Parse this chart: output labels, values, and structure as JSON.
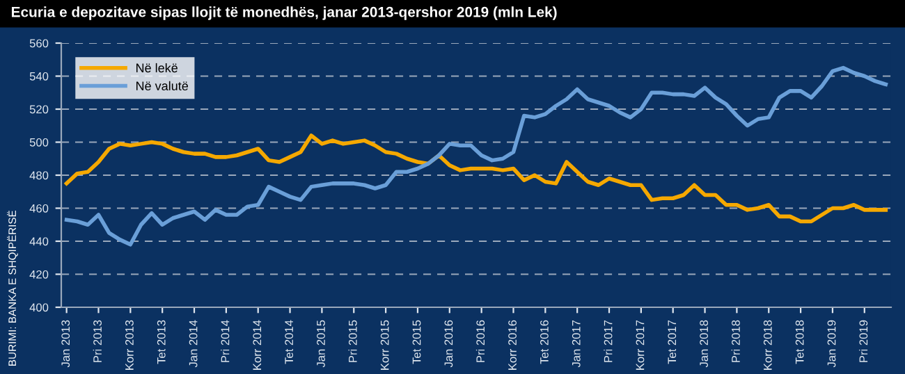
{
  "chart_data": {
    "type": "line",
    "title": "Ecuria e depozitave sipas llojit të monedhës, janar 2013-qershor 2019 (mln Lek)",
    "categories": [
      "Jan 2013",
      null,
      null,
      "Pri 2013",
      null,
      null,
      "Korr 2013",
      null,
      null,
      "Tet 2013",
      null,
      null,
      "Jan 2014",
      null,
      null,
      "Pri 2014",
      null,
      null,
      "Korr 2014",
      null,
      null,
      "Tet 2014",
      null,
      null,
      "Jan 2015",
      null,
      null,
      "Pri 2015",
      null,
      null,
      "Korr 2015",
      null,
      null,
      "Tet 2015",
      null,
      null,
      "Jan 2016",
      null,
      null,
      "Pri 2016",
      null,
      null,
      "Korr 2016",
      null,
      null,
      "Tet 2016",
      null,
      null,
      "Jan 2017",
      null,
      null,
      "Pri 2017",
      null,
      null,
      "Korr 2017",
      null,
      null,
      "Tet 2017",
      null,
      null,
      "Jan 2018",
      null,
      null,
      "Pri 2018",
      null,
      null,
      "Korr 2018",
      null,
      null,
      "Tet 2018",
      null,
      null,
      "Jan 2019",
      null,
      null,
      "Pri 2019",
      null,
      null
    ],
    "series": [
      {
        "name": "Në lekë",
        "color": "#f5a800",
        "values": [
          475,
          481,
          482,
          488,
          496,
          499,
          498,
          499,
          500,
          499,
          496,
          494,
          493,
          493,
          491,
          491,
          492,
          494,
          496,
          489,
          488,
          491,
          494,
          504,
          499,
          501,
          499,
          500,
          501,
          498,
          494,
          493,
          490,
          488,
          487,
          492,
          486,
          483,
          484,
          484,
          484,
          483,
          484,
          477,
          480,
          476,
          475,
          488,
          482,
          476,
          474,
          478,
          476,
          474,
          474,
          465,
          466,
          466,
          468,
          474,
          468,
          468,
          462,
          462,
          459,
          460,
          462,
          455,
          455,
          452,
          452,
          456,
          460,
          460,
          462,
          459,
          459,
          459
        ]
      },
      {
        "name": "Në valutë",
        "color": "#6a9fd8",
        "values": [
          453,
          452,
          450,
          456,
          445,
          441,
          438,
          450,
          457,
          450,
          454,
          456,
          458,
          453,
          459,
          456,
          456,
          461,
          462,
          473,
          470,
          467,
          465,
          473,
          474,
          475,
          475,
          475,
          474,
          472,
          474,
          482,
          482,
          484,
          487,
          492,
          499,
          498,
          498,
          492,
          489,
          490,
          494,
          516,
          515,
          517,
          522,
          526,
          532,
          526,
          524,
          522,
          518,
          515,
          520,
          530,
          530,
          529,
          529,
          528,
          533,
          527,
          523,
          516,
          510,
          514,
          515,
          527,
          531,
          531,
          527,
          534,
          543,
          545,
          542,
          540,
          537,
          535
        ]
      }
    ],
    "ylim": [
      400,
      560
    ],
    "yticks": [
      400,
      420,
      440,
      460,
      480,
      500,
      520,
      540,
      560
    ],
    "grid": "y",
    "legend": "top left",
    "line_style": "solid",
    "marker": "none",
    "annotations": [
      "BURIMI: BANKA E SHQIPËRISË"
    ]
  }
}
